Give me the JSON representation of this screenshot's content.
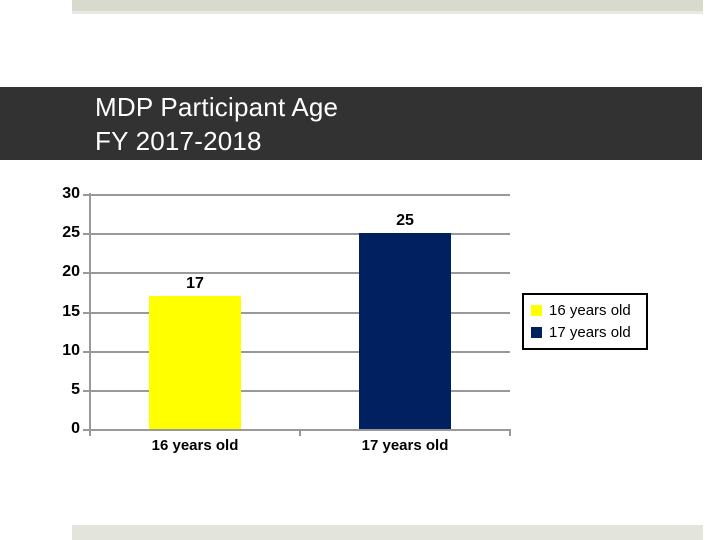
{
  "slide": {
    "title_line1": "MDP Participant Age",
    "title_line2": "FY 2017-2018"
  },
  "colors": {
    "title_band_bg": "#323232",
    "title_text": "#ffffff",
    "top_strip": "#d7dacc",
    "bottom_strip": "#e3e4db",
    "gridline": "#999999",
    "bar_16_years": "#ffff00",
    "bar_17_years": "#002060",
    "label_text": "#000000",
    "legend_border": "#000000",
    "legend_bg": "#ffffff"
  },
  "chart_data": {
    "type": "bar",
    "title": "MDP Participant Age FY 2017-2018",
    "categories": [
      "16 years old",
      "17 years old"
    ],
    "values": [
      17,
      25
    ],
    "series": [
      {
        "name": "16 years old",
        "color": "#ffff00",
        "value": 17
      },
      {
        "name": "17 years old",
        "color": "#002060",
        "value": 25
      }
    ],
    "data_labels": [
      "17",
      "25"
    ],
    "xlabel": "",
    "ylabel": "",
    "ylim": [
      0,
      30
    ],
    "ytick_interval": 5,
    "yticks": [
      "30",
      "25",
      "20",
      "15",
      "10",
      "5",
      "0"
    ],
    "grid": true,
    "legend_position": "right",
    "legend": [
      "16 years old",
      "17 years old"
    ]
  }
}
